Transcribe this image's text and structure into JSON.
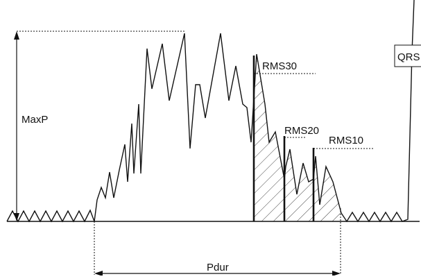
{
  "labels": {
    "max_p": "MaxP",
    "pdur": "Pdur",
    "rms30": "RMS30",
    "rms20": "RMS20",
    "rms10": "RMS10",
    "qrs": "QRS"
  },
  "colors": {
    "stroke": "#111111",
    "background": "#ffffff"
  }
}
